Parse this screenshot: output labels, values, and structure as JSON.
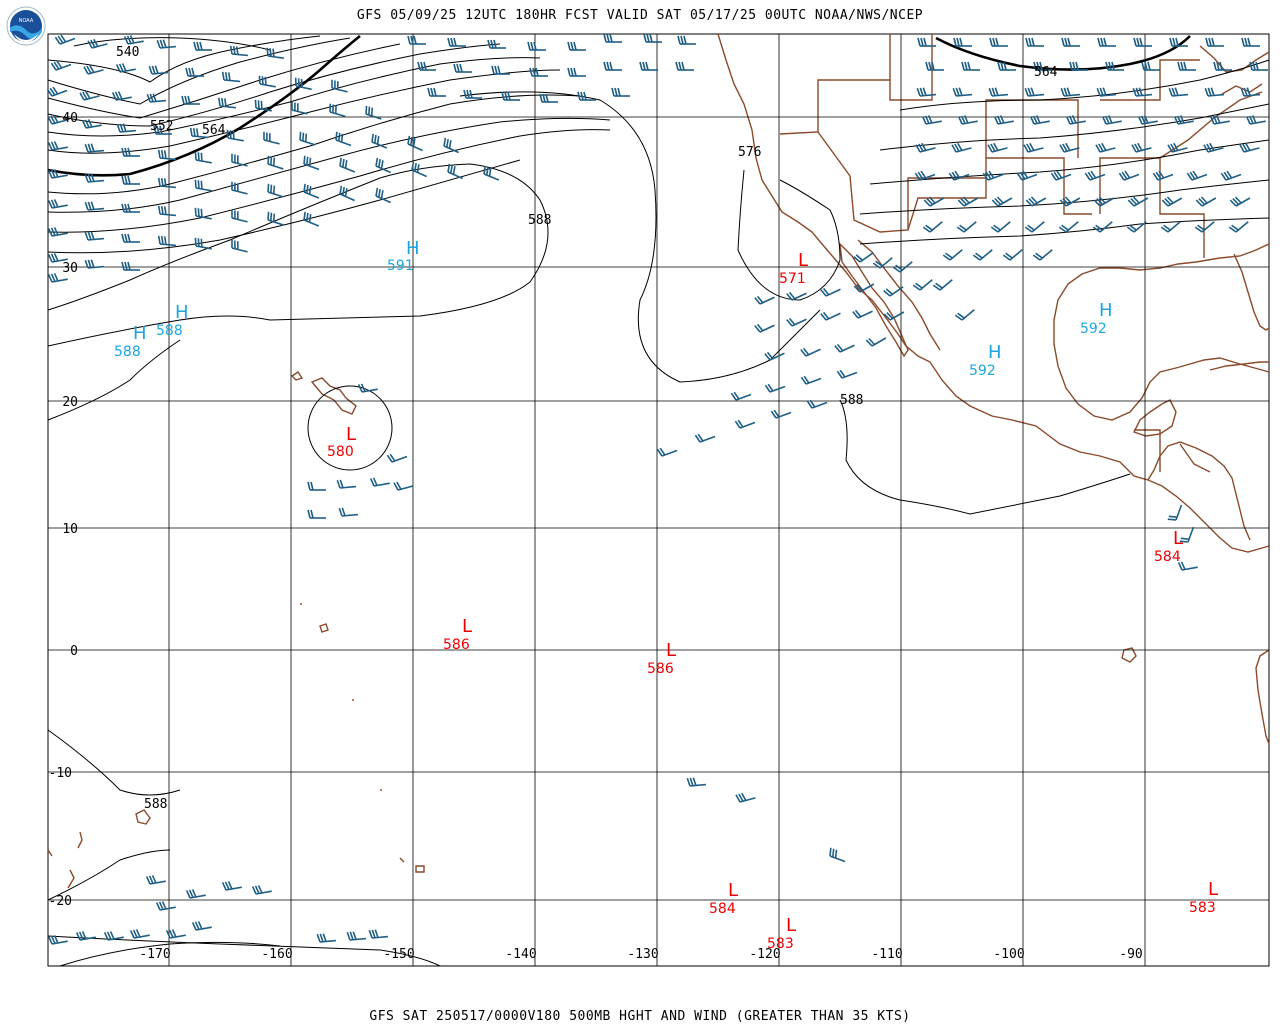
{
  "header": {
    "title": "GFS 05/09/25 12UTC 180HR FCST VALID SAT 05/17/25 00UTC NOAA/NWS/NCEP",
    "logo_text": "NOAA"
  },
  "footer": {
    "caption": "GFS SAT 250517/0000V180 500MB HGHT AND WIND (GREATER THAN 35 KTS)"
  },
  "colors": {
    "grid": "#000000",
    "contour": "#000000",
    "coast": "#8b4a2b",
    "barb": "#1f5f86",
    "high": "#1aa7e0",
    "low": "#ee0000"
  },
  "axes": {
    "lon_labels": [
      "-170",
      "-160",
      "-150",
      "-140",
      "-130",
      "-120",
      "-110",
      "-100",
      "-90"
    ],
    "lat_labels": [
      "40",
      "30",
      "20",
      "10",
      "0",
      "-10",
      "-20"
    ]
  },
  "contour_labels": [
    "540",
    "552",
    "564",
    "576",
    "588",
    "588",
    "564"
  ],
  "highs": [
    {
      "letter": "H",
      "value": "591"
    },
    {
      "letter": "H",
      "value": "588"
    },
    {
      "letter": "H",
      "value": "588"
    },
    {
      "letter": "H",
      "value": "592"
    },
    {
      "letter": "H",
      "value": "592"
    }
  ],
  "lows": [
    {
      "letter": "L",
      "value": "571"
    },
    {
      "letter": "L",
      "value": "580"
    },
    {
      "letter": "L",
      "value": "586"
    },
    {
      "letter": "L",
      "value": "586"
    },
    {
      "letter": "L",
      "value": "584"
    },
    {
      "letter": "L",
      "value": "584"
    },
    {
      "letter": "L",
      "value": "583"
    },
    {
      "letter": "L",
      "value": "583"
    }
  ]
}
